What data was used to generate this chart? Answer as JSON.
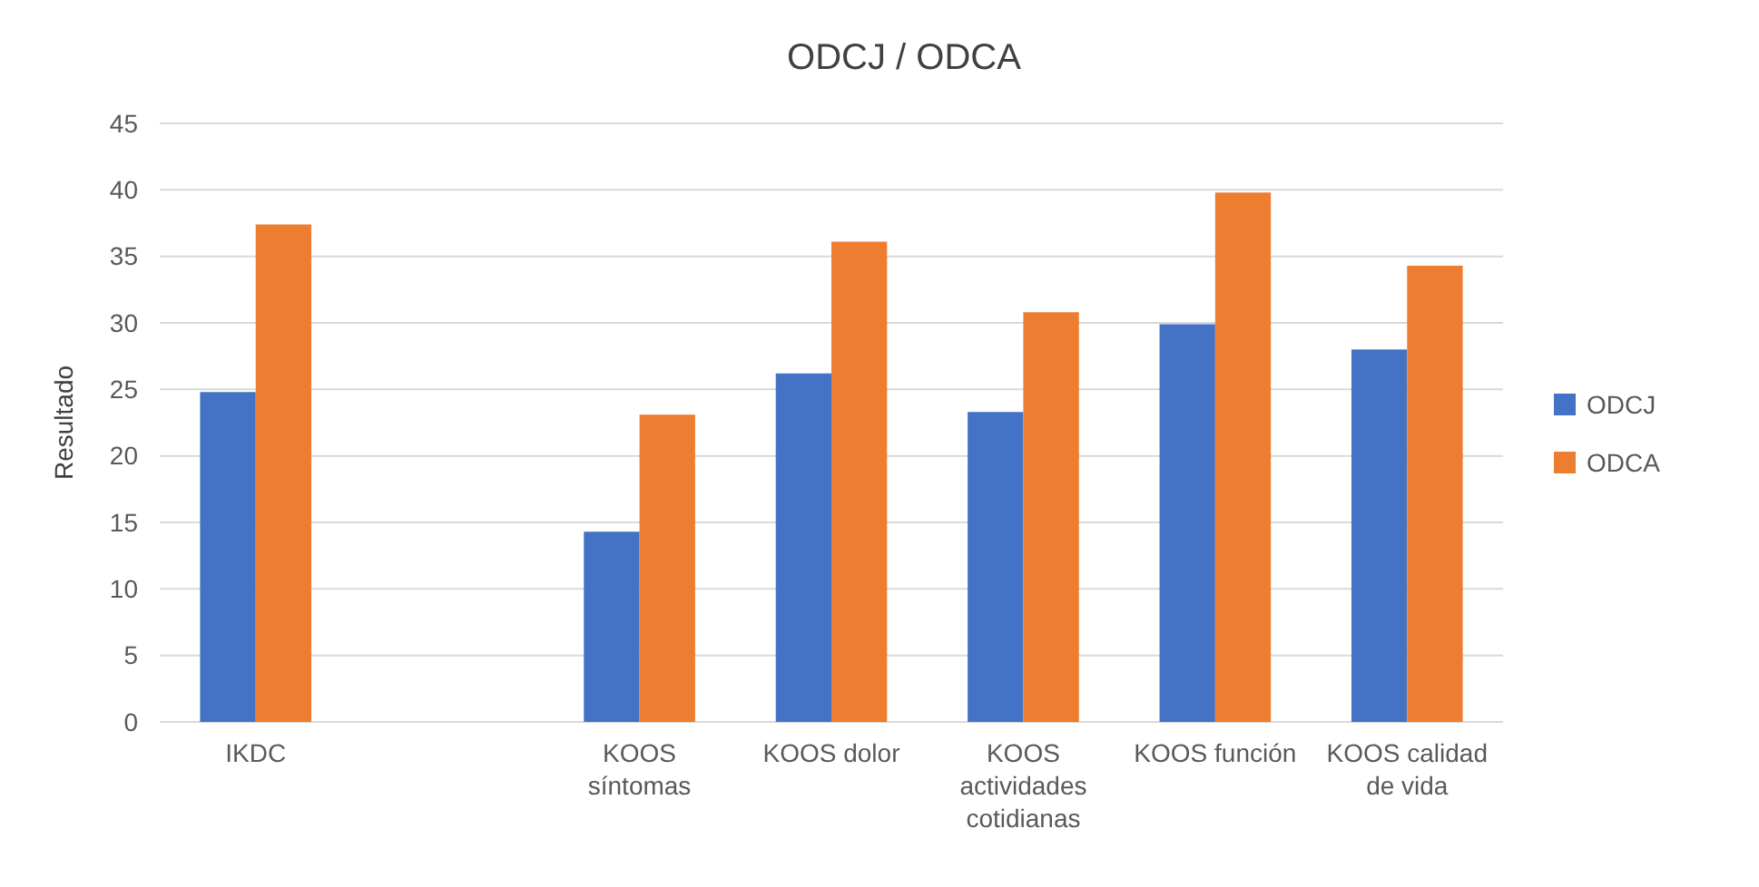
{
  "chart_data": {
    "type": "bar",
    "title": "ODCJ / ODCA",
    "ylabel": "Resultado",
    "categories": [
      "IKDC",
      null,
      "KOOS síntomas",
      "KOOS dolor",
      "KOOS actividades cotidianas",
      "KOOS función",
      "KOOS calidad de vida"
    ],
    "series": [
      {
        "name": "ODCJ",
        "color": "#4472c4",
        "values": [
          24.8,
          null,
          14.3,
          26.2,
          23.3,
          29.9,
          28.0
        ]
      },
      {
        "name": "ODCA",
        "color": "#ed7d31",
        "values": [
          37.4,
          null,
          23.1,
          36.1,
          30.8,
          39.8,
          34.3
        ]
      }
    ],
    "ylim": [
      0,
      45
    ],
    "yticks": [
      0,
      5,
      10,
      15,
      20,
      25,
      30,
      35,
      40,
      45
    ],
    "grid": "y",
    "legend": "right"
  }
}
